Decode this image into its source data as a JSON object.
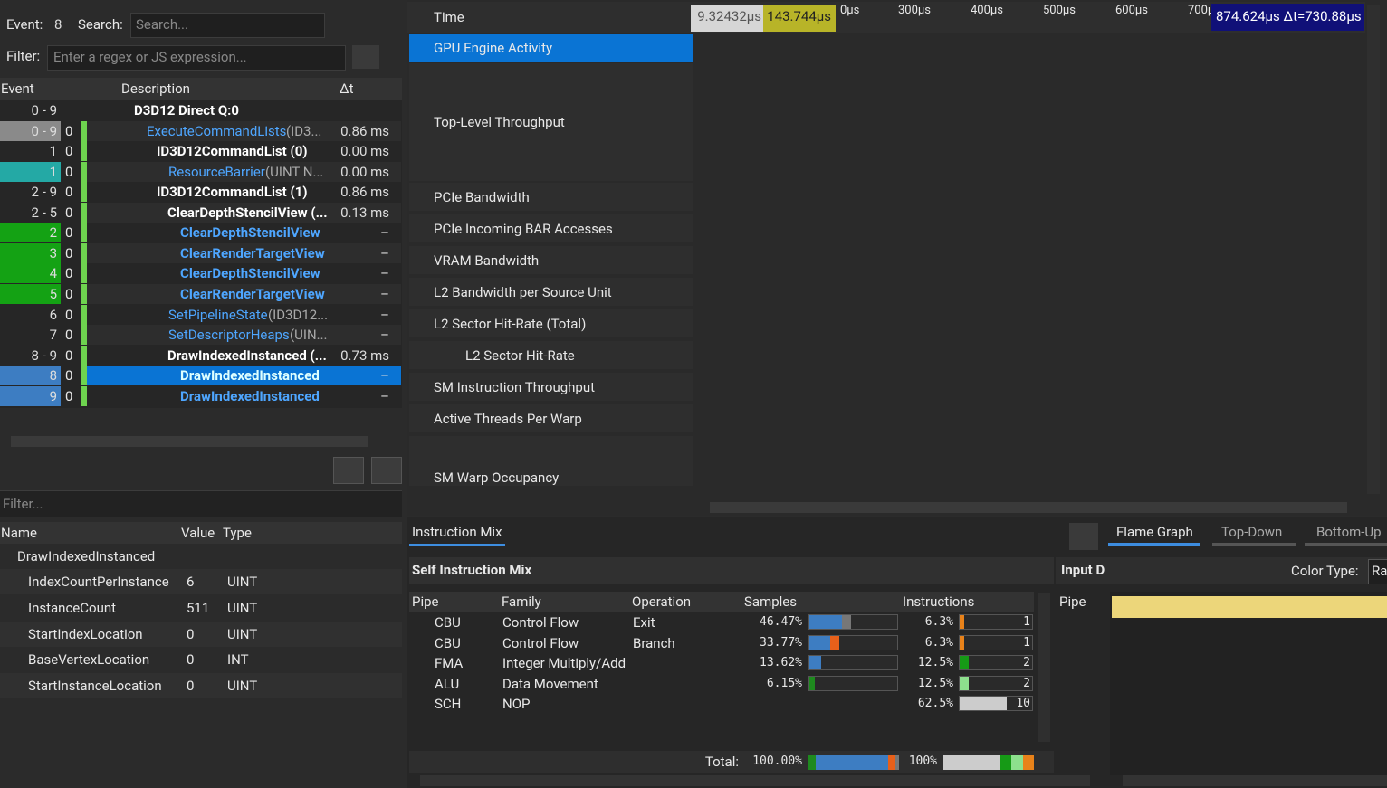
{
  "toolbar": {
    "event_label": "Event:",
    "event_value": "8",
    "search_label": "Search:",
    "search_placeholder": "Search...",
    "filter_label": "Filter:",
    "filter_placeholder": "Enter a regex or JS expression..."
  },
  "event_table": {
    "headers": [
      "Event",
      "Description",
      "Δt"
    ],
    "rows": [
      [
        "0 - 9",
        "",
        "D3D12 Direct Q:0",
        "",
        ""
      ],
      [
        "0 - 9",
        "0",
        "ExecuteCommandLists",
        "(ID3...",
        "0.86 ms"
      ],
      [
        "1",
        "0",
        "ID3D12CommandList (0)",
        "",
        "0.00 ms"
      ],
      [
        "1",
        "0",
        "ResourceBarrier",
        "(UINT N...",
        "0.00 ms"
      ],
      [
        "2 - 9",
        "0",
        "ID3D12CommandList (1)",
        "",
        "0.86 ms"
      ],
      [
        "2 - 5",
        "0",
        "ClearDepthStencilView (...",
        "",
        "0.13 ms"
      ],
      [
        "2",
        "0",
        "ClearDepthStencilView",
        "",
        "–"
      ],
      [
        "3",
        "0",
        "ClearRenderTargetView",
        "",
        "–"
      ],
      [
        "4",
        "0",
        "ClearDepthStencilView",
        "",
        "–"
      ],
      [
        "5",
        "0",
        "ClearRenderTargetView",
        "",
        "–"
      ],
      [
        "6",
        "0",
        "SetPipelineState",
        "(ID3D12...",
        "–"
      ],
      [
        "7",
        "0",
        "SetDescriptorHeaps",
        "(UIN...",
        "–"
      ],
      [
        "8 - 9",
        "0",
        "DrawIndexedInstanced (...",
        "",
        "0.73 ms"
      ],
      [
        "8",
        "0",
        "DrawIndexedInstanced",
        "",
        "–"
      ],
      [
        "9",
        "0",
        "DrawIndexedInstanced",
        "",
        "–"
      ]
    ]
  },
  "properties": {
    "filter_placeholder": "Filter...",
    "headers": [
      "Name",
      "Value",
      "Type"
    ],
    "group": "DrawIndexedInstanced",
    "rows": [
      [
        "IndexCountPerInstance",
        "6",
        "UINT"
      ],
      [
        "InstanceCount",
        "511",
        "UINT"
      ],
      [
        "StartIndexLocation",
        "0",
        "UINT"
      ],
      [
        "BaseVertexLocation",
        "0",
        "INT"
      ],
      [
        "StartInstanceLocation",
        "0",
        "UINT"
      ]
    ]
  },
  "timeline": {
    "time_label": "Time",
    "range_start": "9.32432μs",
    "range_mark": "143.744μs",
    "ruler": [
      "0μs",
      "300μs",
      "400μs",
      "500μs",
      "600μs",
      "700μ"
    ],
    "cursor": "874.624μs Δt=730.88μs",
    "rows": [
      "GPU Engine Activity",
      "Top-Level Throughput",
      "PCIe Bandwidth",
      "PCIe Incoming BAR Accesses",
      "VRAM Bandwidth",
      "L2 Bandwidth per Source Unit",
      "L2 Sector Hit-Rate (Total)",
      "L2 Sector Hit-Rate",
      "SM Instruction Throughput",
      "Active Threads Per Warp",
      "SM Warp Occupancy"
    ]
  },
  "instruction_mix": {
    "tab": "Instruction Mix",
    "title": "Self Instruction Mix",
    "headers": [
      "Pipe",
      "Family",
      "Operation",
      "Samples",
      "Instructions"
    ],
    "rows": [
      [
        "CBU",
        "Control Flow",
        "Exit",
        "46.47%",
        "6.3%",
        "1"
      ],
      [
        "CBU",
        "Control Flow",
        "Branch",
        "33.77%",
        "6.3%",
        "1"
      ],
      [
        "FMA",
        "Integer Multiply/Add",
        "",
        "13.62%",
        "12.5%",
        "2"
      ],
      [
        "ALU",
        "Data Movement",
        "",
        "6.15%",
        "12.5%",
        "2"
      ],
      [
        "SCH",
        "NOP",
        "",
        "",
        "62.5%",
        "10"
      ]
    ],
    "total_label": "Total:",
    "total_samples": "100.00%",
    "total_instructions": "100%"
  },
  "flame": {
    "tabs": [
      "Flame Graph",
      "Top-Down",
      "Bottom-Up"
    ],
    "input_label": "Input D",
    "pipe_label": "Pipe",
    "color_type_label": "Color Type:",
    "color_type_value": "Ra"
  }
}
